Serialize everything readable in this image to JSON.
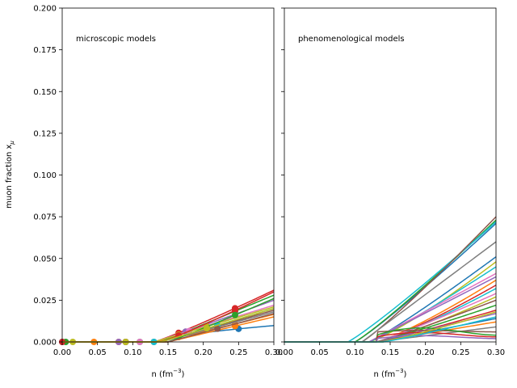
{
  "chart_data": [
    {
      "type": "line",
      "annotation": "microscopic models",
      "xlabel": "n (fm",
      "xlabel_exp": "−3",
      "xlabel_close": ")",
      "ylabel": "muon fraction x",
      "ylabel_sub": "μ",
      "xlim": [
        0.0,
        0.3
      ],
      "ylim": [
        0.0,
        0.2
      ],
      "xticks": [
        "0.00",
        "0.05",
        "0.10",
        "0.15",
        "0.20",
        "0.25",
        "0.30"
      ],
      "yticks": [
        "0.000",
        "0.025",
        "0.050",
        "0.075",
        "0.100",
        "0.125",
        "0.150",
        "0.175",
        "0.200"
      ],
      "grid": false,
      "series": [
        {
          "color": "#1f77b4",
          "onset": 0.14,
          "end": 0.0098,
          "shape": 0.6,
          "markers": [
            0.0,
            0.09,
            0.25
          ]
        },
        {
          "color": "#ff7f0e",
          "onset": 0.13,
          "end": 0.0165,
          "shape": 1.1,
          "markers": [
            0.045,
            0.08,
            0.165,
            0.245
          ]
        },
        {
          "color": "#2ca02c",
          "onset": 0.14,
          "end": 0.028,
          "shape": 1.0,
          "markers": [
            0.005,
            0.11,
            0.175,
            0.245
          ]
        },
        {
          "color": "#d62728",
          "onset": 0.13,
          "end": 0.031,
          "shape": 1.1,
          "markers": [
            0.0,
            0.09,
            0.165,
            0.245
          ]
        },
        {
          "color": "#9467bd",
          "onset": 0.13,
          "end": 0.025,
          "shape": 1.05,
          "markers": [
            0.08,
            0.175
          ]
        },
        {
          "color": "#8c564b",
          "onset": 0.14,
          "end": 0.019,
          "shape": 1.0,
          "markers": [
            0.09,
            0.22
          ]
        },
        {
          "color": "#e377c2",
          "onset": 0.13,
          "end": 0.022,
          "shape": 1.0,
          "markers": [
            0.11,
            0.18
          ]
        },
        {
          "color": "#7f7f7f",
          "onset": 0.14,
          "end": 0.018,
          "shape": 1.0,
          "markers": [
            0.13,
            0.22
          ]
        },
        {
          "color": "#bcbd22",
          "onset": 0.13,
          "end": 0.021,
          "shape": 1.0,
          "markers": [
            0.015,
            0.09,
            0.165,
            0.205
          ]
        },
        {
          "color": "#17becf",
          "onset": 0.14,
          "end": 0.02,
          "shape": 1.0,
          "markers": [
            0.13,
            0.22
          ]
        },
        {
          "color": "#d62728",
          "onset": 0.14,
          "end": 0.03,
          "shape": 1.1,
          "markers": [
            0.165,
            0.245
          ]
        },
        {
          "color": "#2ca02c",
          "onset": 0.15,
          "end": 0.026,
          "shape": 1.05,
          "markers": [
            0.245
          ]
        },
        {
          "color": "#ff7f0e",
          "onset": 0.15,
          "end": 0.015,
          "shape": 1.0,
          "markers": [
            0.245
          ]
        },
        {
          "color": "#8c564b",
          "onset": 0.15,
          "end": 0.017,
          "shape": 1.0,
          "markers": [
            0.22
          ]
        },
        {
          "color": "#bcbd22",
          "onset": 0.14,
          "end": 0.02,
          "shape": 1.0,
          "markers": [
            0.205
          ]
        }
      ]
    },
    {
      "type": "line",
      "annotation": "phenomenological models",
      "xlabel": "n (fm",
      "xlabel_exp": "−3",
      "xlabel_close": ")",
      "xlim": [
        0.0,
        0.3
      ],
      "ylim": [
        0.0,
        0.2
      ],
      "xticks": [
        "0.00",
        "0.05",
        "0.10",
        "0.15",
        "0.20",
        "0.25",
        "0.30"
      ],
      "grid": false,
      "series": [
        {
          "color": "#1f77b4",
          "onset": 0.1,
          "end": 0.071,
          "shape": 1.1
        },
        {
          "color": "#2ca02c",
          "onset": 0.1,
          "end": 0.073,
          "shape": 1.1
        },
        {
          "color": "#17becf",
          "onset": 0.09,
          "end": 0.072,
          "shape": 1.1
        },
        {
          "color": "#8c564b",
          "onset": 0.11,
          "end": 0.075,
          "shape": 1.1
        },
        {
          "color": "#7f7f7f",
          "onset": 0.11,
          "end": 0.06,
          "shape": 1.0
        },
        {
          "color": "#1f77b4",
          "onset": 0.12,
          "end": 0.051,
          "shape": 1.1
        },
        {
          "color": "#bcbd22",
          "onset": 0.12,
          "end": 0.048,
          "shape": 1.2
        },
        {
          "color": "#17becf",
          "onset": 0.12,
          "end": 0.045,
          "shape": 1.1
        },
        {
          "color": "#e377c2",
          "onset": 0.12,
          "end": 0.041,
          "shape": 1.0
        },
        {
          "color": "#9467bd",
          "onset": 0.12,
          "end": 0.039,
          "shape": 1.0
        },
        {
          "color": "#ff7f0e",
          "onset": 0.13,
          "end": 0.037,
          "shape": 1.2
        },
        {
          "color": "#d62728",
          "onset": 0.13,
          "end": 0.034,
          "shape": 1.2
        },
        {
          "color": "#17becf",
          "onset": 0.13,
          "end": 0.032,
          "shape": 1.2
        },
        {
          "color": "#e377c2",
          "onset": 0.13,
          "end": 0.029,
          "shape": 1.1
        },
        {
          "color": "#bcbd22",
          "onset": 0.13,
          "end": 0.027,
          "shape": 1.2
        },
        {
          "color": "#8c564b",
          "onset": 0.13,
          "end": 0.025,
          "shape": 1.1
        },
        {
          "color": "#2ca02c",
          "onset": 0.13,
          "end": 0.022,
          "shape": 1.1
        },
        {
          "color": "#d62728",
          "onset": 0.13,
          "end": 0.019,
          "shape": 1.1
        },
        {
          "color": "#9467bd",
          "onset": 0.13,
          "end": 0.017,
          "shape": 1.0
        },
        {
          "color": "#1f77b4",
          "onset": 0.13,
          "end": 0.014,
          "shape": 1.0
        },
        {
          "color": "#ff7f0e",
          "onset": 0.13,
          "end": 0.012,
          "shape": 1.0
        },
        {
          "color": "#7f7f7f",
          "onset": 0.13,
          "end": 0.009,
          "shape": 1.0
        },
        {
          "color": "#8c564b",
          "onset": 0.13,
          "end": 0.006,
          "shape": 1.0,
          "peak": 0.007
        },
        {
          "color": "#2ca02c",
          "onset": 0.13,
          "end": 0.004,
          "shape": 1.0,
          "peak": 0.009
        },
        {
          "color": "#d62728",
          "onset": 0.13,
          "end": 0.003,
          "shape": 1.0,
          "peak": 0.006
        },
        {
          "color": "#9467bd",
          "onset": 0.13,
          "end": 0.002,
          "shape": 1.0,
          "peak": 0.004
        },
        {
          "color": "#bcbd22",
          "onset": 0.14,
          "end": 0.018,
          "shape": 1.1
        },
        {
          "color": "#17becf",
          "onset": 0.14,
          "end": 0.015,
          "shape": 1.1
        }
      ]
    }
  ]
}
